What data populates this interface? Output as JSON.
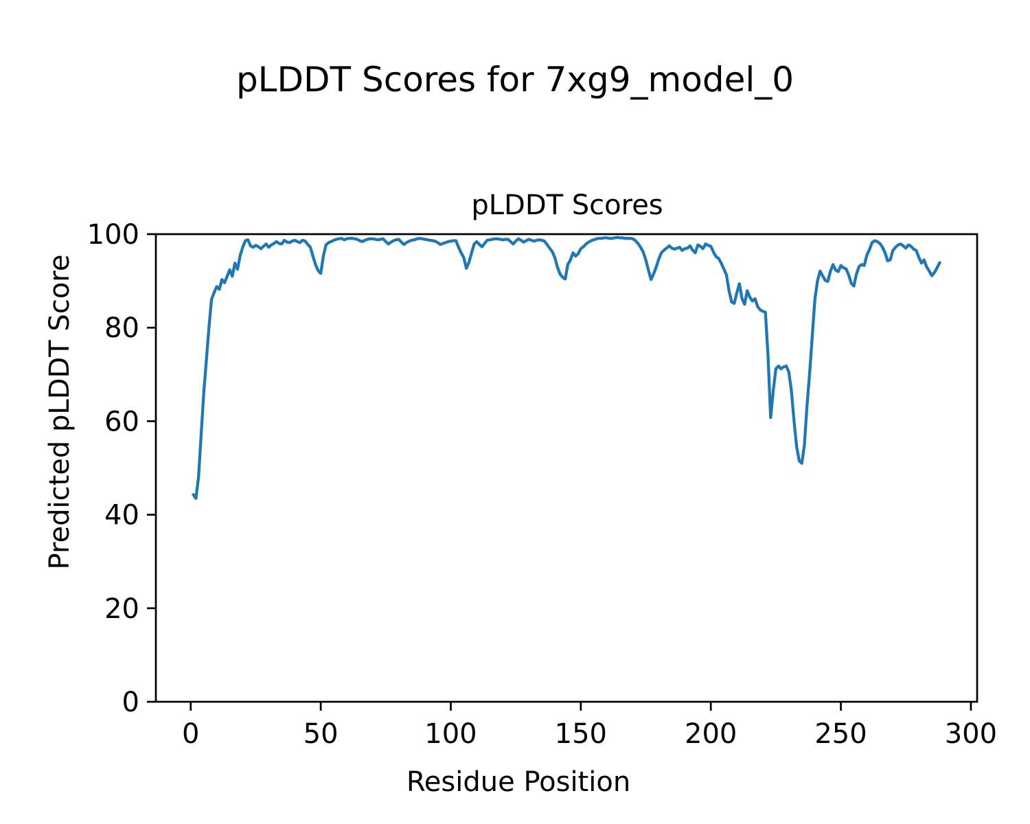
{
  "chart_data": {
    "type": "line",
    "suptitle": "pLDDT Scores for 7xg9_model_0",
    "title": "pLDDT Scores",
    "xlabel": "Residue Position",
    "ylabel": "Predicted pLDDT Score",
    "xlim": [
      -13.4,
      302.4
    ],
    "ylim": [
      0,
      100
    ],
    "xticks": [
      0,
      50,
      100,
      150,
      200,
      250,
      300
    ],
    "yticks": [
      0,
      20,
      40,
      60,
      80,
      100
    ],
    "grid": false,
    "legend": "none",
    "line_color": "#1f77b4",
    "spine_color": "#000000",
    "series": [
      {
        "name": "pLDDT",
        "x_start": 1,
        "x_step": 1,
        "y": [
          44.3,
          43.5,
          48,
          57,
          66,
          73,
          80,
          86,
          87.5,
          88.8,
          88.2,
          90.3,
          89.6,
          91,
          92.4,
          91,
          93.8,
          92.5,
          95.4,
          97.2,
          98.6,
          98.8,
          97.5,
          97.2,
          97.6,
          97.3,
          96.9,
          97.4,
          97.9,
          97.2,
          97.7,
          98,
          98.4,
          98,
          97.9,
          98.7,
          98.3,
          98.2,
          98.5,
          98.7,
          98.4,
          98.2,
          98.7,
          98.5,
          97.8,
          97.2,
          95.3,
          93.5,
          92.2,
          91.6,
          95.3,
          97.7,
          98.2,
          98.4,
          98.7,
          98.9,
          99,
          99.1,
          98.8,
          99,
          99.1,
          99.1,
          99,
          98.9,
          98.6,
          98.4,
          98.7,
          98.9,
          99,
          99,
          98.9,
          98.8,
          98.9,
          99,
          98.4,
          97.9,
          98.3,
          98.6,
          98.8,
          98.9,
          98.3,
          97.8,
          98.2,
          98.5,
          98.7,
          98.8,
          99,
          99.1,
          99,
          98.9,
          98.8,
          98.7,
          98.6,
          98.5,
          98.2,
          97.8,
          98,
          98.2,
          98.4,
          98.5,
          98.6,
          98.6,
          97.2,
          96,
          95,
          92.7,
          94,
          96,
          97.9,
          98.4,
          97.8,
          97.3,
          98,
          98.7,
          98.8,
          98.9,
          99,
          99,
          98.9,
          98.8,
          98.9,
          98.9,
          98.4,
          97.9,
          98.5,
          99,
          98.7,
          98.3,
          98.6,
          98.9,
          98.7,
          98.5,
          98.7,
          98.8,
          98.7,
          98.5,
          97.8,
          97,
          96.3,
          95,
          93,
          91.5,
          90.8,
          90.4,
          93.5,
          94.5,
          96,
          95.3,
          95.8,
          96.9,
          97.3,
          97.9,
          98.3,
          98.6,
          98.8,
          99,
          99.1,
          99.1,
          99.2,
          99.2,
          99.1,
          99.1,
          99.2,
          99.3,
          99.2,
          99.2,
          99.1,
          99.1,
          99.1,
          99,
          98.6,
          98,
          97.2,
          96.2,
          94.5,
          92.3,
          90.3,
          91.5,
          93,
          94.7,
          96,
          96.6,
          97,
          97.5,
          97,
          96.8,
          97,
          97.2,
          96.5,
          96.9,
          97,
          97.5,
          96.6,
          96,
          97.7,
          97.4,
          96.9,
          97.9,
          97.6,
          97.4,
          96.2,
          95.2,
          94.8,
          93.8,
          92.6,
          91.3,
          87.9,
          85.5,
          85.2,
          87.5,
          89.4,
          86.2,
          85,
          87.9,
          86.5,
          85.7,
          86.2,
          84.5,
          83.8,
          83.5,
          83.3,
          74,
          60.8,
          66.5,
          71.2,
          71.8,
          71.2,
          71.6,
          71.8,
          70.5,
          66.4,
          60,
          54.5,
          51.5,
          51,
          55,
          63.4,
          70.3,
          78.1,
          86,
          90,
          92.1,
          91.1,
          90.1,
          89.9,
          92.1,
          93.5,
          92.3,
          92,
          93.3,
          92.8,
          92.6,
          91.3,
          89.5,
          88.9,
          91.5,
          93.1,
          93.5,
          93.3,
          95.5,
          96.7,
          98.2,
          98.6,
          98.4,
          98,
          97.2,
          96,
          94.3,
          94.5,
          96.5,
          97.2,
          97.7,
          97.9,
          97.5,
          97,
          97.7,
          97.4,
          96.8,
          96.5,
          95,
          93.8,
          94.5,
          93,
          92.1,
          91.1,
          91.8,
          92.8,
          93.9
        ]
      }
    ]
  }
}
